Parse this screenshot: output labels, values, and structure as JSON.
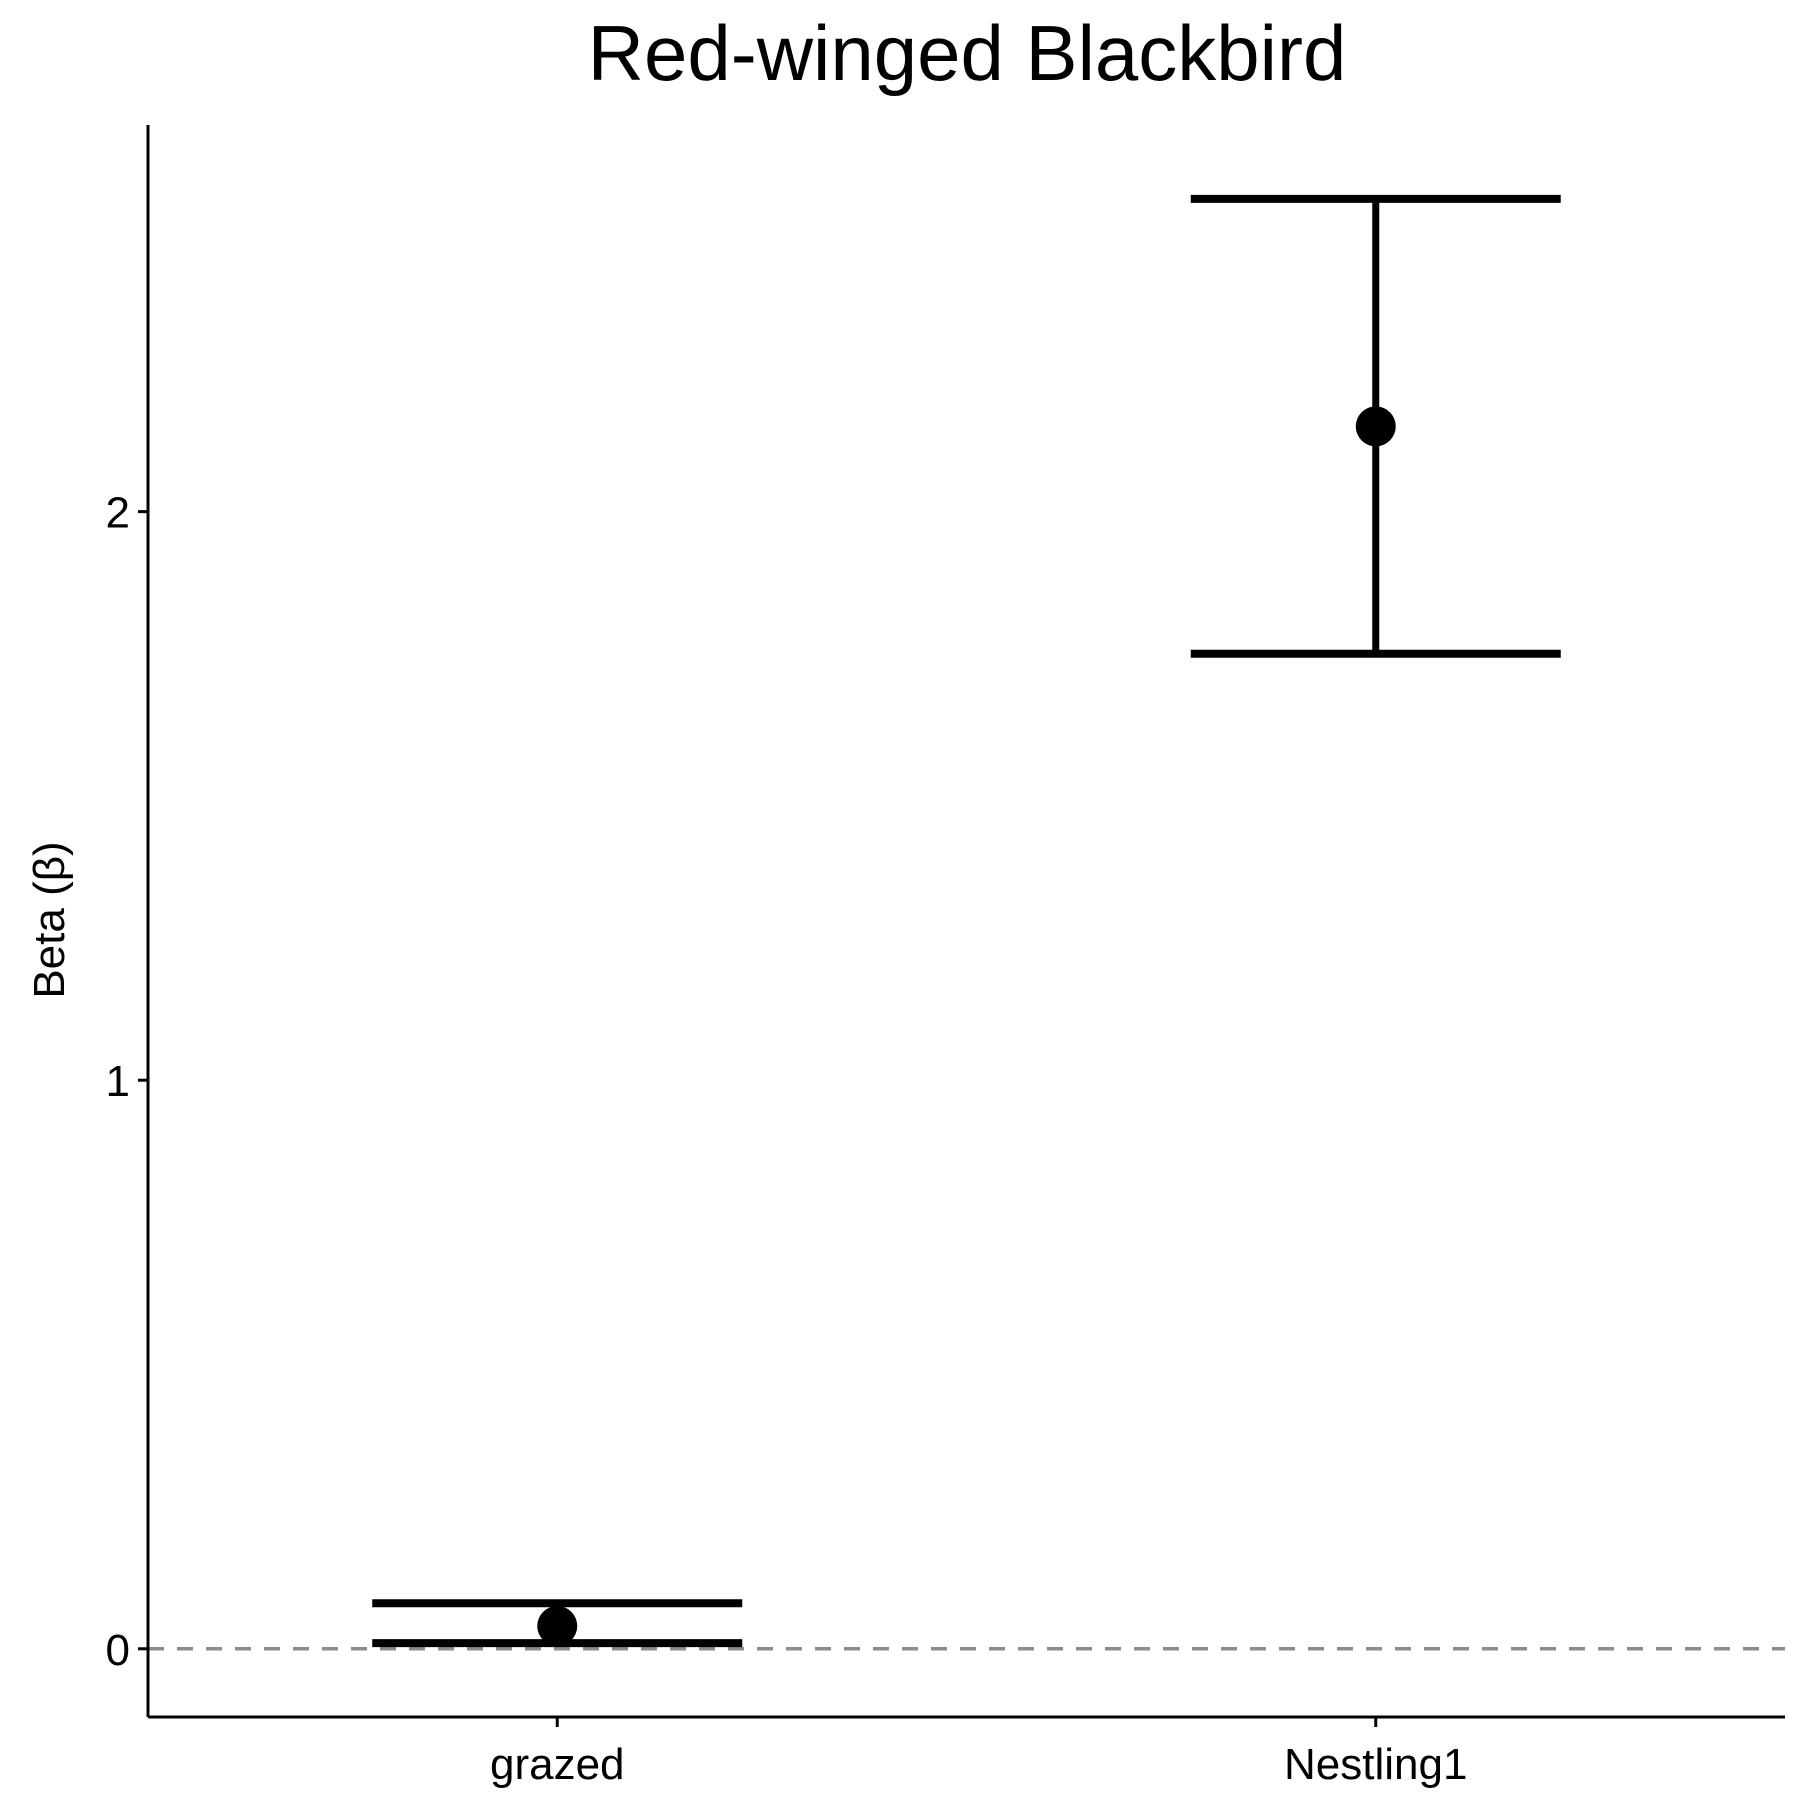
{
  "chart_data": {
    "type": "errorbar",
    "title": "Red-winged Blackbird",
    "xlabel": "",
    "ylabel": "Beta (β)",
    "categories": [
      "grazed",
      "Nestling1"
    ],
    "estimates": [
      0.04,
      2.15
    ],
    "lower": [
      0.01,
      1.75
    ],
    "upper": [
      0.08,
      2.55
    ],
    "ylim": [
      -0.12,
      2.68
    ],
    "y_ticks": [
      0,
      1,
      2
    ],
    "y_tick_labels": [
      "0",
      "1",
      "2"
    ],
    "reference_line": 0,
    "reference_line_style": "dashed",
    "grid": false,
    "colors": {
      "marks": "#000000",
      "reference_line": "#8c8c8c",
      "axis": "#000000"
    }
  }
}
